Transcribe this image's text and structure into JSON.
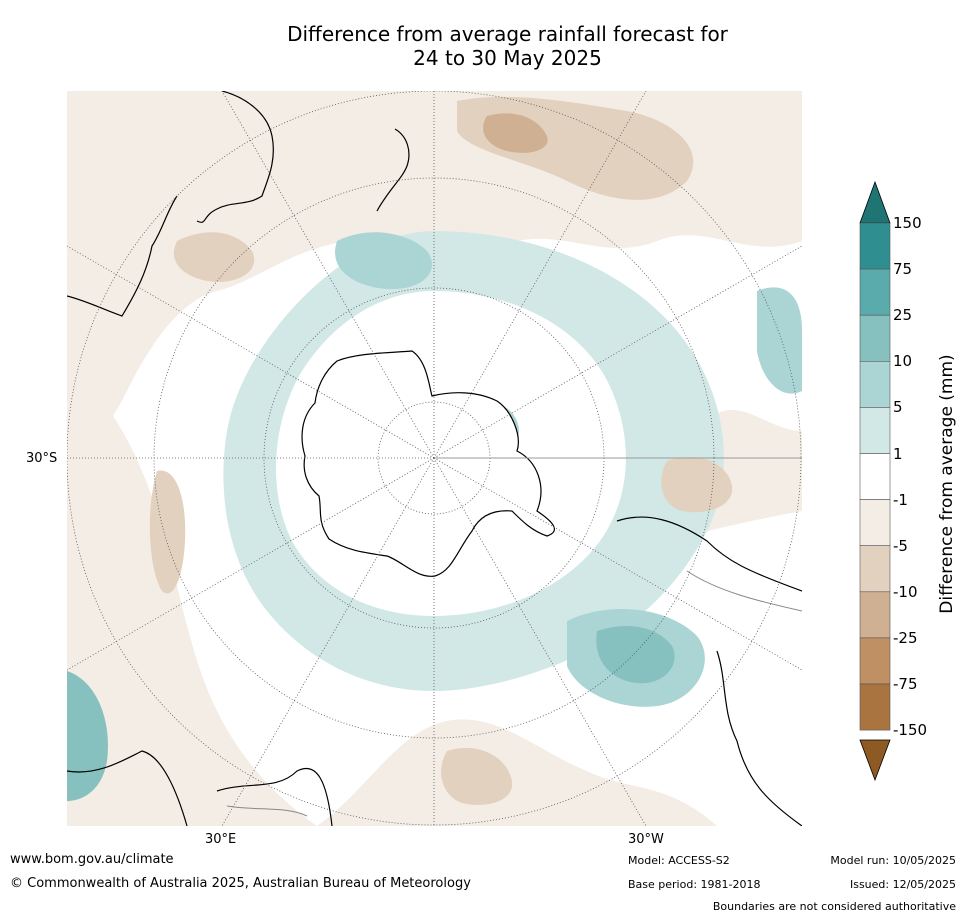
{
  "title": {
    "line1": "Difference from average rainfall forecast for",
    "line2": "24 to 30 May 2025"
  },
  "map": {
    "labels": {
      "lat_30s": "30°S",
      "lon_30e": "30°E",
      "lon_30w": "30°W"
    }
  },
  "colorbar": {
    "label": "Difference from average (mm)",
    "ticks": [
      "150",
      "75",
      "25",
      "10",
      "5",
      "1",
      "-1",
      "-5",
      "-10",
      "-25",
      "-75",
      "-150"
    ],
    "colors": [
      "#2f8e8f",
      "#5aabab",
      "#86c1c0",
      "#aad5d4",
      "#d2e8e7",
      "#ffffff",
      "#f4ede6",
      "#e3d1bf",
      "#cfb092",
      "#bf9064",
      "#aa7440"
    ],
    "top_arrow_color": "#1f7474",
    "bottom_arrow_color": "#8e5a24"
  },
  "footer": {
    "website": "www.bom.gov.au/climate",
    "copyright": "© Commonwealth of Australia 2025, Australian Bureau of Meteorology",
    "model": "Model: ACCESS-S2",
    "base_period": "Base period: 1981-2018",
    "model_run": "Model run: 10/05/2025",
    "issued": "Issued: 12/05/2025",
    "disclaimer": "Boundaries are not considered authoritative"
  }
}
